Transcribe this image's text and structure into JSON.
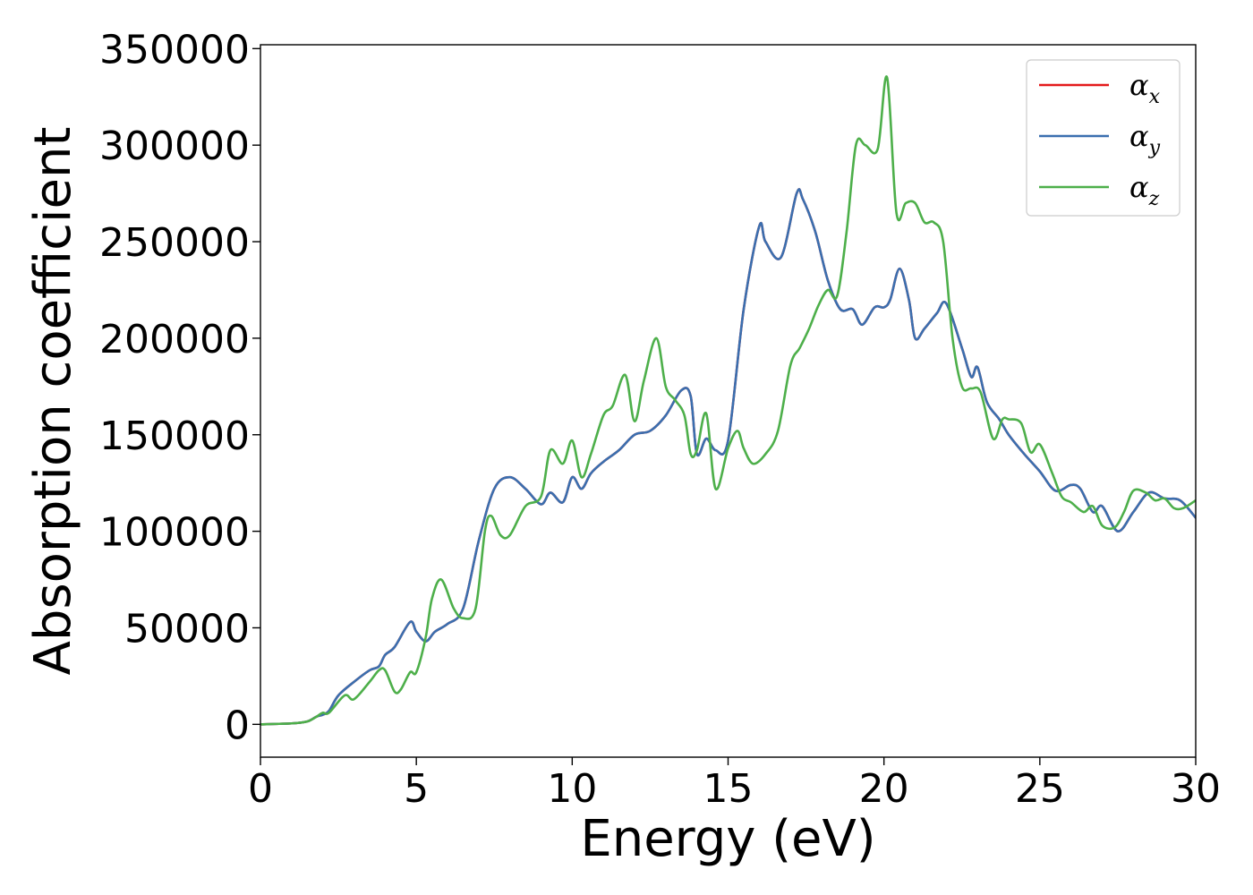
{
  "chart_data": {
    "type": "line",
    "title": "",
    "xlabel": "Energy (eV)",
    "ylabel": "Absorption coefficient",
    "xlim": [
      0,
      30
    ],
    "ylim": [
      -17000,
      352000
    ],
    "xticks": [
      0,
      5,
      10,
      15,
      20,
      25,
      30
    ],
    "xtick_labels": [
      "0",
      "5",
      "10",
      "15",
      "20",
      "25",
      "30"
    ],
    "yticks": [
      0,
      50000,
      100000,
      150000,
      200000,
      250000,
      300000,
      350000
    ],
    "ytick_labels": [
      "0",
      "50000",
      "100000",
      "150000",
      "200000",
      "250000",
      "300000",
      "350000"
    ],
    "grid": false,
    "legend_position": "top-right",
    "series": [
      {
        "name": "α_x",
        "label_main": "α",
        "label_sub": "x",
        "color": "#e41a1c",
        "x": [
          0,
          1,
          1.5,
          1.8,
          2.0,
          2.2,
          2.5,
          3.0,
          3.5,
          3.8,
          4.0,
          4.3,
          4.8,
          5.0,
          5.3,
          5.6,
          6.0,
          6.5,
          7.0,
          7.5,
          8.0,
          8.5,
          9.0,
          9.3,
          9.7,
          10.0,
          10.3,
          10.6,
          11.0,
          11.5,
          12.0,
          12.5,
          13.0,
          13.5,
          13.8,
          14.0,
          14.3,
          14.6,
          15.0,
          15.5,
          16.0,
          16.2,
          16.7,
          17.2,
          17.4,
          17.8,
          18.2,
          18.6,
          19.0,
          19.3,
          19.7,
          20.0,
          20.2,
          20.5,
          20.8,
          21.0,
          21.3,
          21.7,
          22.0,
          22.5,
          22.8,
          23.0,
          23.3,
          23.7,
          24.0,
          24.5,
          25.0,
          25.5,
          26.0,
          26.3,
          26.7,
          27.0,
          27.5,
          28.0,
          28.5,
          29.0,
          29.5,
          30.0
        ],
        "y": [
          0,
          500,
          1500,
          4000,
          5000,
          7000,
          15000,
          22000,
          28000,
          30000,
          36000,
          40000,
          53000,
          48000,
          43000,
          48000,
          52000,
          60000,
          95000,
          122000,
          128000,
          122000,
          114000,
          120000,
          115000,
          128000,
          122000,
          130000,
          136000,
          142000,
          150000,
          152000,
          160000,
          173000,
          170000,
          140000,
          148000,
          142000,
          147000,
          215000,
          258000,
          250000,
          242000,
          275000,
          272000,
          255000,
          230000,
          215000,
          215000,
          207000,
          216000,
          216000,
          220000,
          236000,
          220000,
          200000,
          205000,
          213000,
          218000,
          195000,
          180000,
          185000,
          167000,
          158000,
          150000,
          140000,
          131000,
          121000,
          124000,
          122000,
          110000,
          113000,
          100000,
          110000,
          120000,
          117000,
          116000,
          107000
        ]
      },
      {
        "name": "α_y",
        "label_main": "α",
        "label_sub": "y",
        "color": "#3a6faf",
        "x": [
          0,
          1,
          1.5,
          1.8,
          2.0,
          2.2,
          2.5,
          3.0,
          3.5,
          3.8,
          4.0,
          4.3,
          4.8,
          5.0,
          5.3,
          5.6,
          6.0,
          6.5,
          7.0,
          7.5,
          8.0,
          8.5,
          9.0,
          9.3,
          9.7,
          10.0,
          10.3,
          10.6,
          11.0,
          11.5,
          12.0,
          12.5,
          13.0,
          13.5,
          13.8,
          14.0,
          14.3,
          14.6,
          15.0,
          15.5,
          16.0,
          16.2,
          16.7,
          17.2,
          17.4,
          17.8,
          18.2,
          18.6,
          19.0,
          19.3,
          19.7,
          20.0,
          20.2,
          20.5,
          20.8,
          21.0,
          21.3,
          21.7,
          22.0,
          22.5,
          22.8,
          23.0,
          23.3,
          23.7,
          24.0,
          24.5,
          25.0,
          25.5,
          26.0,
          26.3,
          26.7,
          27.0,
          27.5,
          28.0,
          28.5,
          29.0,
          29.5,
          30.0
        ],
        "y": [
          0,
          500,
          1500,
          4000,
          5000,
          7000,
          15000,
          22000,
          28000,
          30000,
          36000,
          40000,
          53000,
          48000,
          43000,
          48000,
          52000,
          60000,
          95000,
          122000,
          128000,
          122000,
          114000,
          120000,
          115000,
          128000,
          122000,
          130000,
          136000,
          142000,
          150000,
          152000,
          160000,
          173000,
          170000,
          140000,
          148000,
          142000,
          147000,
          215000,
          258000,
          250000,
          242000,
          275000,
          272000,
          255000,
          230000,
          215000,
          215000,
          207000,
          216000,
          216000,
          220000,
          236000,
          220000,
          200000,
          205000,
          213000,
          218000,
          195000,
          180000,
          185000,
          167000,
          158000,
          150000,
          140000,
          131000,
          121000,
          124000,
          122000,
          110000,
          113000,
          100000,
          110000,
          120000,
          117000,
          116000,
          107000
        ]
      },
      {
        "name": "α_z",
        "label_main": "α",
        "label_sub": "z",
        "color": "#4daf4a",
        "x": [
          0,
          1,
          1.5,
          1.8,
          2.0,
          2.2,
          2.7,
          3.0,
          3.5,
          3.8,
          4.0,
          4.3,
          4.5,
          4.8,
          5.0,
          5.3,
          5.5,
          5.8,
          6.2,
          6.5,
          6.9,
          7.2,
          7.4,
          7.7,
          8.0,
          8.5,
          9.0,
          9.3,
          9.7,
          10.0,
          10.3,
          10.6,
          11.0,
          11.3,
          11.7,
          12.0,
          12.3,
          12.7,
          13.0,
          13.3,
          13.6,
          13.8,
          14.0,
          14.3,
          14.6,
          15.0,
          15.3,
          15.5,
          15.8,
          16.2,
          16.6,
          17.0,
          17.3,
          17.6,
          17.9,
          18.2,
          18.5,
          18.8,
          19.1,
          19.4,
          19.8,
          20.1,
          20.4,
          20.7,
          21.0,
          21.3,
          21.6,
          21.9,
          22.2,
          22.5,
          22.8,
          23.1,
          23.5,
          23.8,
          24.0,
          24.4,
          24.7,
          25.0,
          25.4,
          25.7,
          26.0,
          26.4,
          26.7,
          27.0,
          27.4,
          27.7,
          28.0,
          28.4,
          28.7,
          29.0,
          29.3,
          29.6,
          30.0
        ],
        "y": [
          0,
          500,
          1500,
          4000,
          6000,
          6000,
          15000,
          13000,
          22000,
          28000,
          28000,
          17000,
          18000,
          27000,
          27000,
          45000,
          65000,
          75000,
          60000,
          55000,
          60000,
          100000,
          108000,
          98000,
          98000,
          113000,
          118000,
          142000,
          135000,
          147000,
          128000,
          140000,
          160000,
          165000,
          181000,
          157000,
          178000,
          200000,
          175000,
          168000,
          160000,
          140000,
          142000,
          161000,
          122000,
          143000,
          152000,
          143000,
          135000,
          140000,
          152000,
          186000,
          195000,
          205000,
          217000,
          225000,
          222000,
          255000,
          300000,
          300000,
          298000,
          335000,
          265000,
          270000,
          270000,
          260000,
          260000,
          250000,
          200000,
          175000,
          174000,
          172000,
          148000,
          158000,
          158000,
          156000,
          141000,
          145000,
          130000,
          118000,
          115000,
          110000,
          113000,
          103000,
          102000,
          110000,
          121000,
          120000,
          116000,
          117000,
          112000,
          112000,
          116000
        ]
      }
    ]
  }
}
